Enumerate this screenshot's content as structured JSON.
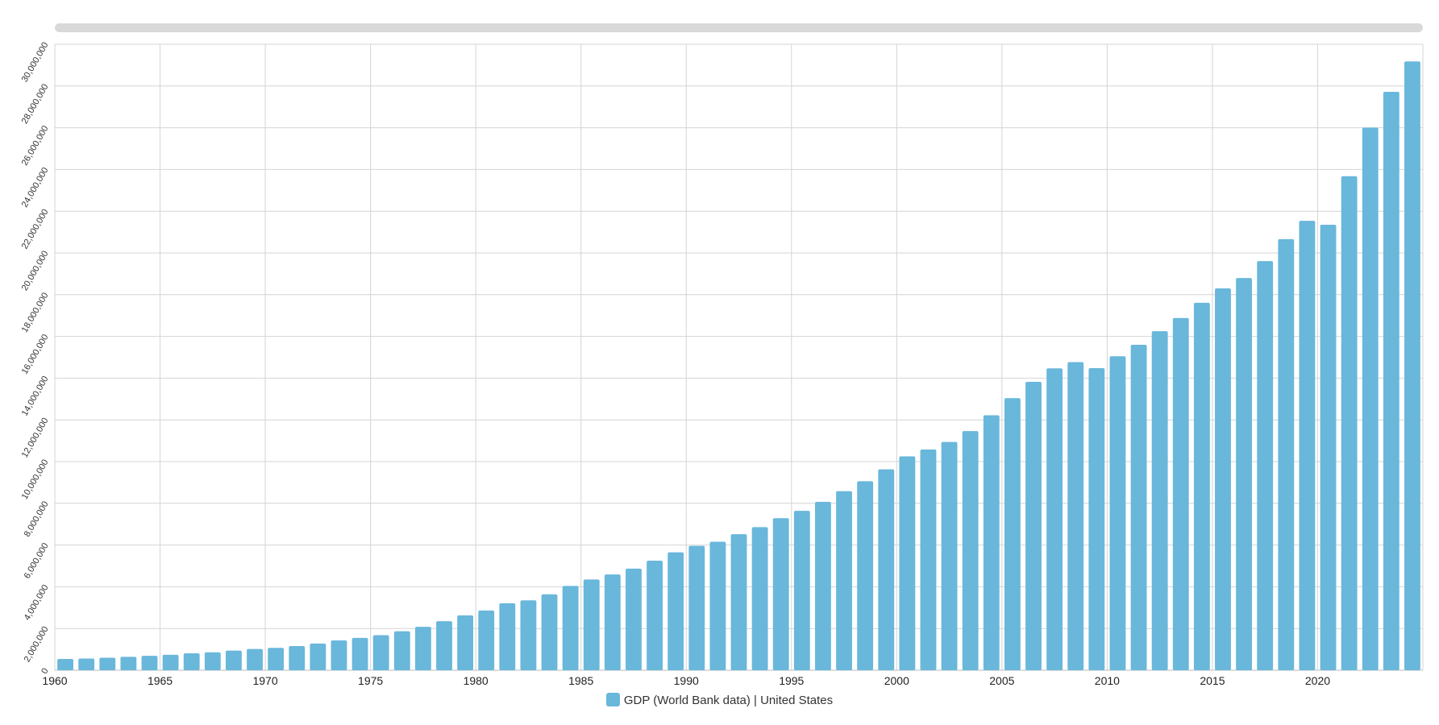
{
  "colors": {
    "bar": "#69b7db",
    "grid": "#d4d4d4"
  },
  "legend": {
    "label": "GDP (World Bank data) | United States"
  },
  "chart_data": {
    "type": "bar",
    "title": "",
    "xlabel": "",
    "ylabel": "",
    "ylim": [
      0,
      30000000
    ],
    "y_ticks": [
      0,
      2000000,
      4000000,
      6000000,
      8000000,
      10000000,
      12000000,
      14000000,
      16000000,
      18000000,
      20000000,
      22000000,
      24000000,
      26000000,
      28000000,
      30000000
    ],
    "y_tick_labels": [
      "0",
      "2,000,000",
      "4,000,000",
      "6,000,000",
      "8,000,000",
      "10,000,000",
      "12,000,000",
      "14,000,000",
      "16,000,000",
      "18,000,000",
      "20,000,000",
      "22,000,000",
      "24,000,000",
      "26,000,000",
      "28,000,000",
      "30,000,000"
    ],
    "x_tick_labels": [
      "1960",
      "1965",
      "1970",
      "1975",
      "1980",
      "1985",
      "1990",
      "1995",
      "2000",
      "2005",
      "2010",
      "2015",
      "2020"
    ],
    "grid": true,
    "legend_position": "bottom-center",
    "categories": [
      1960,
      1961,
      1962,
      1963,
      1964,
      1965,
      1966,
      1967,
      1968,
      1969,
      1970,
      1971,
      1972,
      1973,
      1974,
      1975,
      1976,
      1977,
      1978,
      1979,
      1980,
      1981,
      1982,
      1983,
      1984,
      1985,
      1986,
      1987,
      1988,
      1989,
      1990,
      1991,
      1992,
      1993,
      1994,
      1995,
      1996,
      1997,
      1998,
      1999,
      2000,
      2001,
      2002,
      2003,
      2004,
      2005,
      2006,
      2007,
      2008,
      2009,
      2010,
      2011,
      2012,
      2013,
      2014,
      2015,
      2016,
      2017,
      2018,
      2019,
      2020,
      2021,
      2022,
      2023,
      2024
    ],
    "series": [
      {
        "name": "GDP (World Bank data) | United States",
        "values": [
          540000,
          560000,
          600000,
          640000,
          690000,
          740000,
          810000,
          860000,
          940000,
          1020000,
          1070000,
          1160000,
          1280000,
          1430000,
          1550000,
          1680000,
          1870000,
          2080000,
          2350000,
          2630000,
          2860000,
          3210000,
          3350000,
          3640000,
          4040000,
          4350000,
          4590000,
          4870000,
          5250000,
          5650000,
          5960000,
          6160000,
          6520000,
          6860000,
          7290000,
          7640000,
          8070000,
          8580000,
          9060000,
          9630000,
          10250000,
          10580000,
          10940000,
          11460000,
          12220000,
          13040000,
          13820000,
          14470000,
          14770000,
          14480000,
          15050000,
          15600000,
          16250000,
          16880000,
          17610000,
          18300000,
          18800000,
          19610000,
          20660000,
          21540000,
          21350000,
          23680000,
          26010000,
          27720000,
          29180000
        ]
      }
    ]
  }
}
